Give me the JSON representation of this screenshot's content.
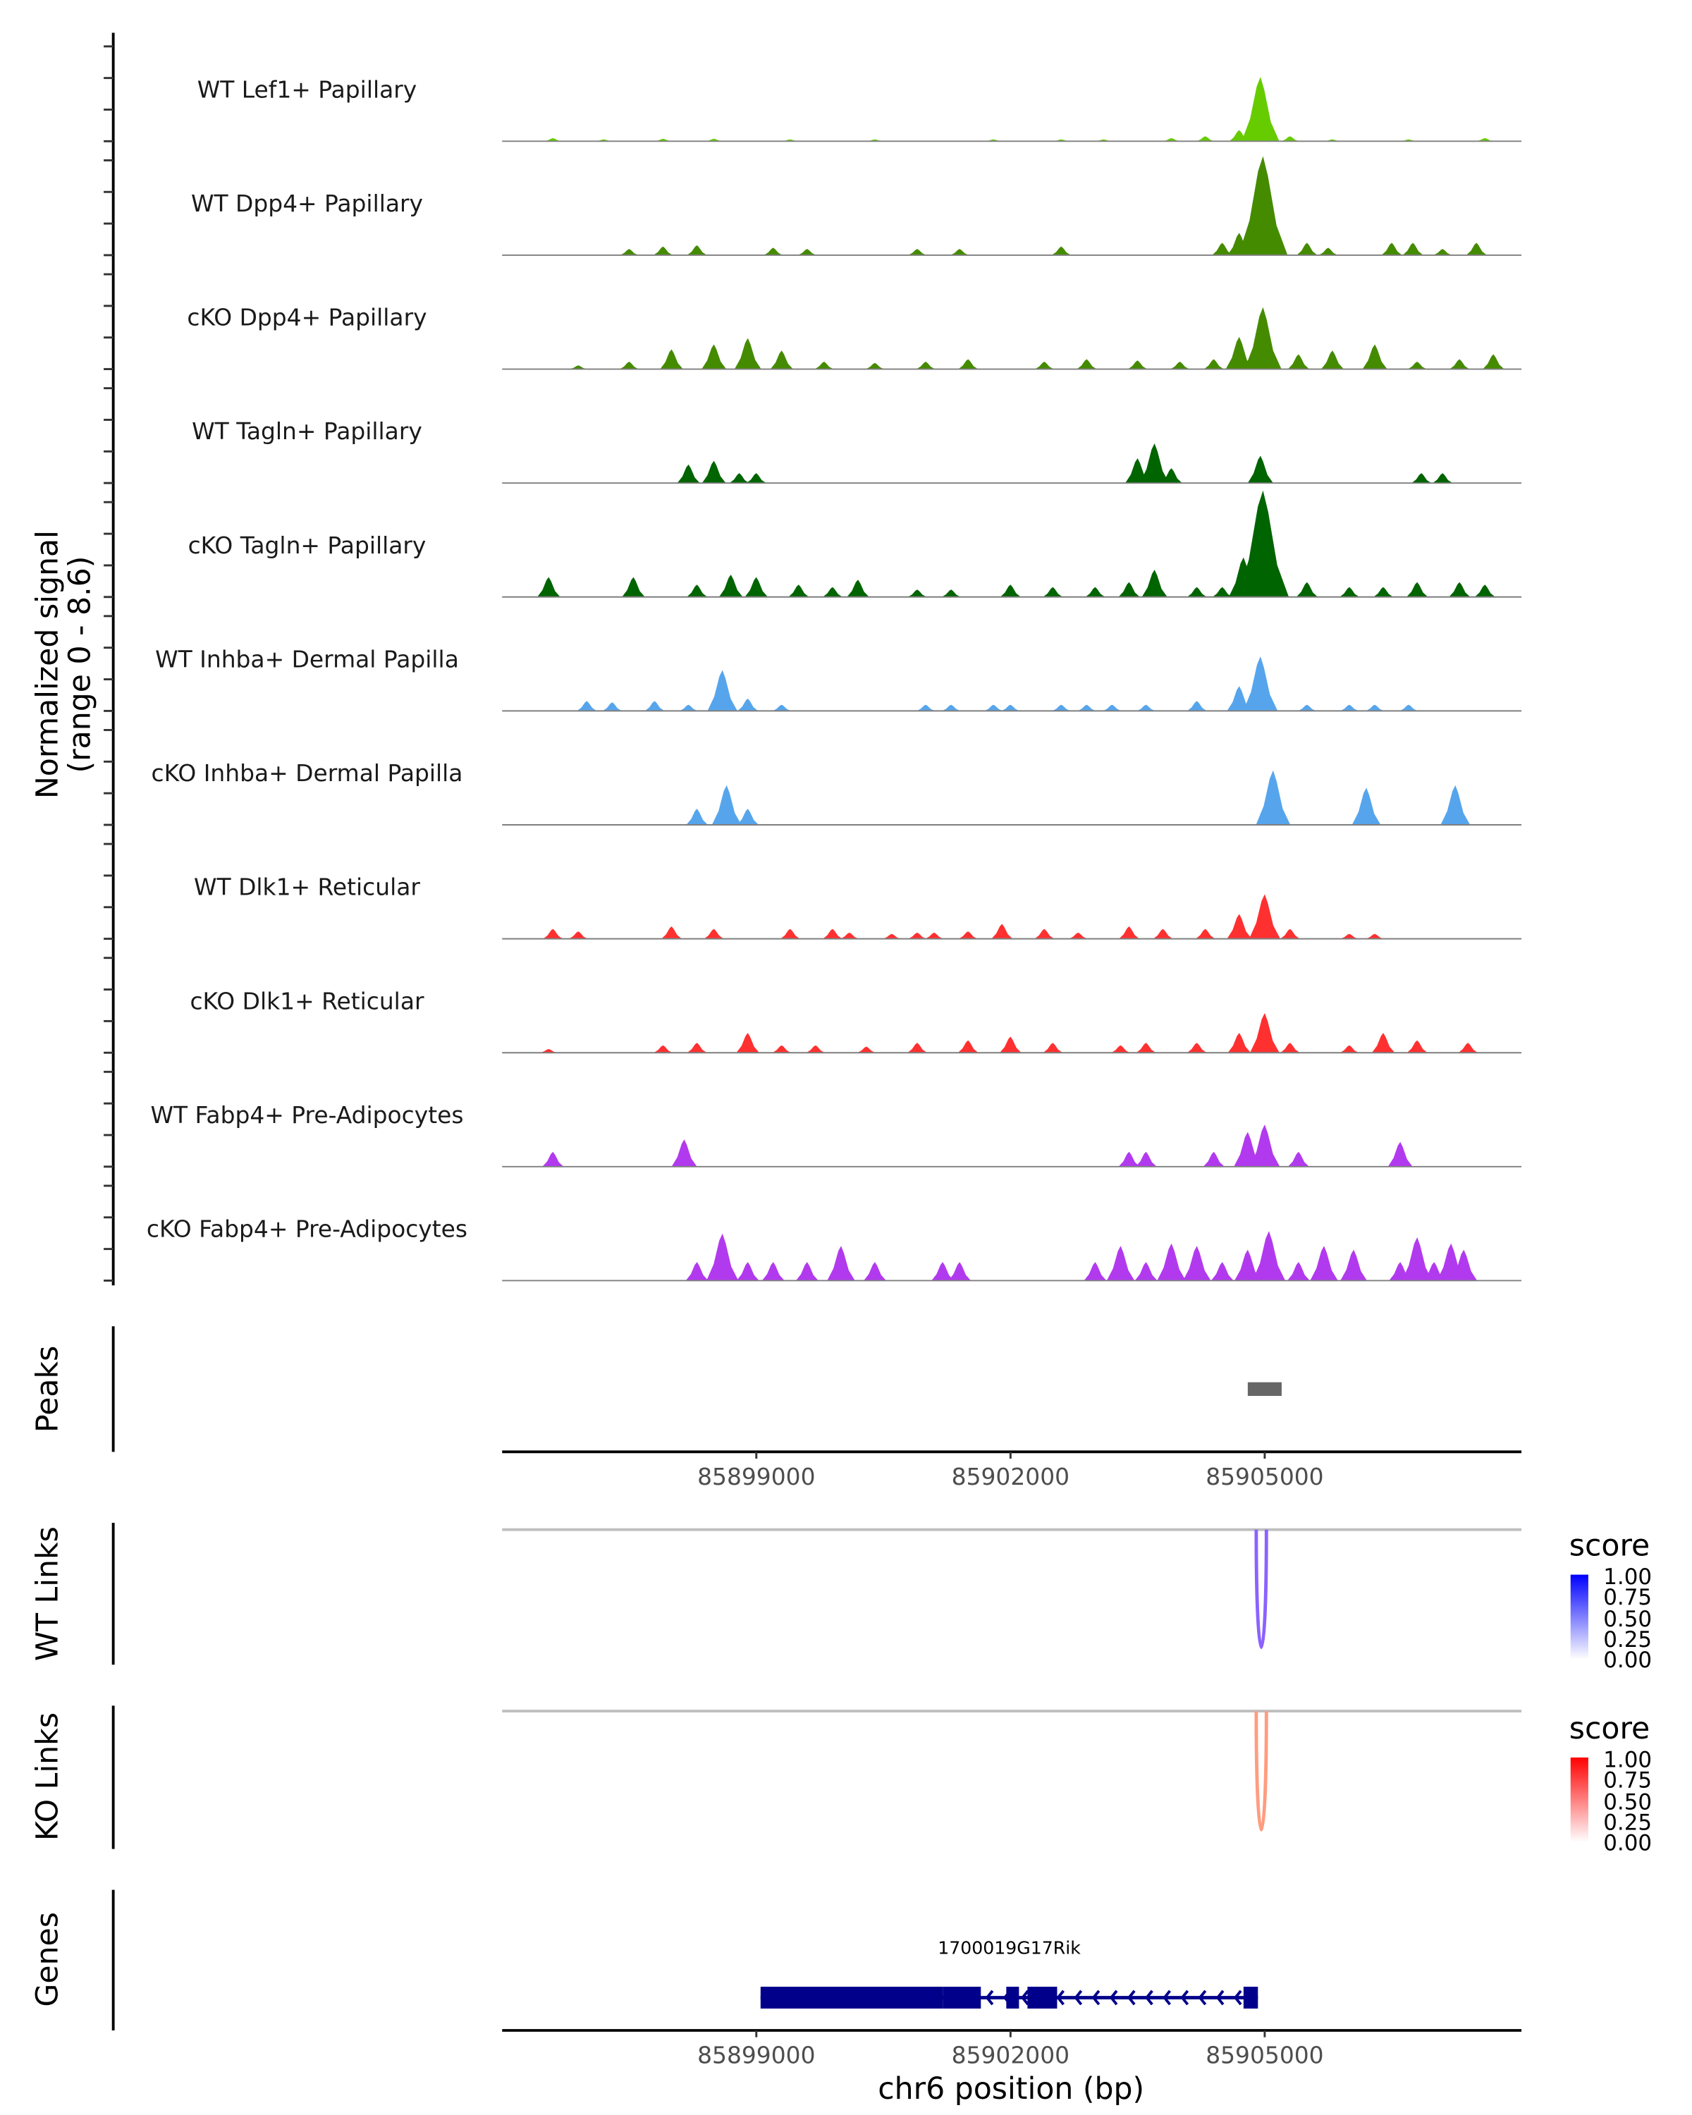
{
  "chart_data": {
    "type": "area",
    "title": "",
    "region": {
      "chrom": "chr6",
      "start": 85896000,
      "end": 85908030
    },
    "xlabel": "chr6 position (bp)",
    "x_ticks": [
      85899000,
      85902000,
      85905000
    ],
    "x_tick_labels": [
      "85899000",
      "85902000",
      "85905000"
    ],
    "coverage_ylabel": "Normalized signal\n(range 0 - 8.6)",
    "coverage_ylabel_lines": [
      "Normalized signal",
      "(range 0 - 8.6)"
    ],
    "ylim": [
      0,
      8.6
    ],
    "tracks": [
      {
        "name": "WT Lef1+ Papillary",
        "color": "#66CC00",
        "peaks": [
          [
            85896600,
            0.25
          ],
          [
            85897200,
            0.15
          ],
          [
            85897900,
            0.2
          ],
          [
            85898500,
            0.2
          ],
          [
            85899400,
            0.15
          ],
          [
            85900400,
            0.15
          ],
          [
            85901800,
            0.15
          ],
          [
            85902600,
            0.15
          ],
          [
            85903100,
            0.15
          ],
          [
            85903900,
            0.25
          ],
          [
            85904300,
            0.4
          ],
          [
            85904700,
            0.9
          ],
          [
            85904950,
            5.2
          ],
          [
            85905300,
            0.4
          ],
          [
            85905800,
            0.15
          ],
          [
            85906700,
            0.15
          ],
          [
            85907600,
            0.25
          ]
        ]
      },
      {
        "name": "WT Dpp4+ Papillary",
        "color": "#458B00",
        "peaks": [
          [
            85897500,
            0.5
          ],
          [
            85897900,
            0.7
          ],
          [
            85898300,
            0.8
          ],
          [
            85899200,
            0.6
          ],
          [
            85899600,
            0.5
          ],
          [
            85900900,
            0.5
          ],
          [
            85901400,
            0.5
          ],
          [
            85902600,
            0.7
          ],
          [
            85904500,
            1.0
          ],
          [
            85904700,
            1.8
          ],
          [
            85904980,
            8.0
          ],
          [
            85905500,
            1.0
          ],
          [
            85905750,
            0.6
          ],
          [
            85906500,
            1.0
          ],
          [
            85906750,
            1.0
          ],
          [
            85907100,
            0.5
          ],
          [
            85907500,
            1.0
          ]
        ]
      },
      {
        "name": "cKO Dpp4+ Papillary",
        "color": "#458B00",
        "peaks": [
          [
            85896900,
            0.3
          ],
          [
            85897500,
            0.6
          ],
          [
            85898000,
            1.6
          ],
          [
            85898500,
            2.0
          ],
          [
            85898900,
            2.5
          ],
          [
            85899300,
            1.5
          ],
          [
            85899800,
            0.6
          ],
          [
            85900400,
            0.5
          ],
          [
            85901000,
            0.6
          ],
          [
            85901500,
            0.8
          ],
          [
            85902400,
            0.6
          ],
          [
            85902900,
            0.8
          ],
          [
            85903500,
            0.7
          ],
          [
            85904000,
            0.6
          ],
          [
            85904400,
            0.8
          ],
          [
            85904700,
            2.6
          ],
          [
            85904980,
            5.0
          ],
          [
            85905400,
            1.2
          ],
          [
            85905800,
            1.5
          ],
          [
            85906300,
            2.0
          ],
          [
            85906800,
            0.6
          ],
          [
            85907300,
            0.8
          ],
          [
            85907700,
            1.2
          ]
        ]
      },
      {
        "name": "WT Tagln+ Papillary",
        "color": "#006400",
        "peaks": [
          [
            85898200,
            1.5
          ],
          [
            85898500,
            1.8
          ],
          [
            85898800,
            0.8
          ],
          [
            85899000,
            0.8
          ],
          [
            85903500,
            2.0
          ],
          [
            85903700,
            3.2
          ],
          [
            85903900,
            1.2
          ],
          [
            85904950,
            2.2
          ],
          [
            85906850,
            0.8
          ],
          [
            85907100,
            0.8
          ]
        ]
      },
      {
        "name": "cKO Tagln+ Papillary",
        "color": "#006400",
        "peaks": [
          [
            85896550,
            1.6
          ],
          [
            85897550,
            1.6
          ],
          [
            85898300,
            1.0
          ],
          [
            85898700,
            1.8
          ],
          [
            85899000,
            1.6
          ],
          [
            85899500,
            1.0
          ],
          [
            85899900,
            0.8
          ],
          [
            85900200,
            1.4
          ],
          [
            85900900,
            0.6
          ],
          [
            85901300,
            0.6
          ],
          [
            85902000,
            1.0
          ],
          [
            85902500,
            0.8
          ],
          [
            85903000,
            0.8
          ],
          [
            85903400,
            1.2
          ],
          [
            85903700,
            2.2
          ],
          [
            85904200,
            0.8
          ],
          [
            85904500,
            0.8
          ],
          [
            85904750,
            3.2
          ],
          [
            85904980,
            8.6
          ],
          [
            85905500,
            1.2
          ],
          [
            85906000,
            0.8
          ],
          [
            85906400,
            0.8
          ],
          [
            85906800,
            1.2
          ],
          [
            85907300,
            1.2
          ],
          [
            85907600,
            1.0
          ]
        ]
      },
      {
        "name": "WT Inhba+ Dermal Papilla",
        "color": "#56A5EC",
        "peaks": [
          [
            85897000,
            0.8
          ],
          [
            85897300,
            0.7
          ],
          [
            85897800,
            0.8
          ],
          [
            85898200,
            0.5
          ],
          [
            85898600,
            3.3
          ],
          [
            85898900,
            1.0
          ],
          [
            85899300,
            0.5
          ],
          [
            85901000,
            0.5
          ],
          [
            85901300,
            0.5
          ],
          [
            85901800,
            0.5
          ],
          [
            85902000,
            0.5
          ],
          [
            85902600,
            0.5
          ],
          [
            85902900,
            0.5
          ],
          [
            85903200,
            0.5
          ],
          [
            85903600,
            0.5
          ],
          [
            85904200,
            0.8
          ],
          [
            85904700,
            2.0
          ],
          [
            85904950,
            4.4
          ],
          [
            85905500,
            0.5
          ],
          [
            85906000,
            0.5
          ],
          [
            85906300,
            0.5
          ],
          [
            85906700,
            0.5
          ]
        ]
      },
      {
        "name": "cKO Inhba+ Dermal Papilla",
        "color": "#56A5EC",
        "peaks": [
          [
            85898300,
            1.3
          ],
          [
            85898650,
            3.2
          ],
          [
            85898900,
            1.3
          ],
          [
            85905100,
            4.4
          ],
          [
            85906200,
            3.0
          ],
          [
            85907250,
            3.2
          ]
        ]
      },
      {
        "name": "WT Dlk1+ Reticular",
        "color": "#FF3030",
        "peaks": [
          [
            85896600,
            0.8
          ],
          [
            85896900,
            0.6
          ],
          [
            85898000,
            1.0
          ],
          [
            85898500,
            0.8
          ],
          [
            85899400,
            0.8
          ],
          [
            85899900,
            0.8
          ],
          [
            85900100,
            0.5
          ],
          [
            85900600,
            0.4
          ],
          [
            85900900,
            0.5
          ],
          [
            85901100,
            0.5
          ],
          [
            85901500,
            0.6
          ],
          [
            85901900,
            1.2
          ],
          [
            85902400,
            0.8
          ],
          [
            85902800,
            0.5
          ],
          [
            85903400,
            1.0
          ],
          [
            85903800,
            0.8
          ],
          [
            85904300,
            0.8
          ],
          [
            85904700,
            2.0
          ],
          [
            85905000,
            3.6
          ],
          [
            85905300,
            0.8
          ],
          [
            85906000,
            0.4
          ],
          [
            85906300,
            0.4
          ]
        ]
      },
      {
        "name": "cKO Dlk1+ Reticular",
        "color": "#FF3030",
        "peaks": [
          [
            85896550,
            0.3
          ],
          [
            85897900,
            0.6
          ],
          [
            85898300,
            0.8
          ],
          [
            85898900,
            1.6
          ],
          [
            85899300,
            0.6
          ],
          [
            85899700,
            0.6
          ],
          [
            85900300,
            0.5
          ],
          [
            85900900,
            0.8
          ],
          [
            85901500,
            1.0
          ],
          [
            85902000,
            1.3
          ],
          [
            85902500,
            0.8
          ],
          [
            85903300,
            0.6
          ],
          [
            85903600,
            0.8
          ],
          [
            85904200,
            0.8
          ],
          [
            85904700,
            1.6
          ],
          [
            85905000,
            3.2
          ],
          [
            85905300,
            0.8
          ],
          [
            85906000,
            0.6
          ],
          [
            85906400,
            1.6
          ],
          [
            85906800,
            1.0
          ],
          [
            85907400,
            0.8
          ]
        ]
      },
      {
        "name": "WT Fabp4+ Pre-Adipocytes",
        "color": "#B23AEE",
        "peaks": [
          [
            85896600,
            1.2
          ],
          [
            85898150,
            2.2
          ],
          [
            85903400,
            1.2
          ],
          [
            85903600,
            1.2
          ],
          [
            85904400,
            1.2
          ],
          [
            85904800,
            2.8
          ],
          [
            85905000,
            3.4
          ],
          [
            85905400,
            1.2
          ],
          [
            85906600,
            2.0
          ]
        ]
      },
      {
        "name": "cKO Fabp4+ Pre-Adipocytes",
        "color": "#B23AEE",
        "peaks": [
          [
            85898300,
            1.5
          ],
          [
            85898600,
            3.8
          ],
          [
            85898900,
            1.5
          ],
          [
            85899200,
            1.5
          ],
          [
            85899600,
            1.5
          ],
          [
            85900000,
            2.8
          ],
          [
            85900400,
            1.5
          ],
          [
            85901200,
            1.5
          ],
          [
            85901400,
            1.5
          ],
          [
            85903000,
            1.5
          ],
          [
            85903300,
            2.8
          ],
          [
            85903600,
            1.5
          ],
          [
            85903900,
            3.0
          ],
          [
            85904200,
            2.8
          ],
          [
            85904500,
            1.5
          ],
          [
            85904800,
            2.5
          ],
          [
            85905050,
            4.0
          ],
          [
            85905400,
            1.5
          ],
          [
            85905700,
            2.8
          ],
          [
            85906050,
            2.5
          ],
          [
            85906600,
            1.5
          ],
          [
            85906800,
            3.5
          ],
          [
            85907000,
            1.5
          ],
          [
            85907200,
            3.0
          ],
          [
            85907350,
            2.5
          ]
        ]
      }
    ],
    "peaks_track": {
      "label": "Peaks",
      "color": "#666666",
      "intervals": [
        [
          85904800,
          85905200
        ]
      ]
    },
    "links": [
      {
        "label": "WT Links",
        "start": 85904900,
        "end": 85905020,
        "score": 0.6,
        "legend_title": "score",
        "low_color": "#FFFFFF",
        "high_color": "#0000FF",
        "line_color": "#8C62FF",
        "legend_ticks": [
          "1.00",
          "0.75",
          "0.50",
          "0.25",
          "0.00"
        ]
      },
      {
        "label": "KO Links",
        "start": 85904900,
        "end": 85905020,
        "score": 0.45,
        "legend_title": "score",
        "low_color": "#FFFFFF",
        "high_color": "#FF0000",
        "line_color": "#FF9C80",
        "legend_ticks": [
          "1.00",
          "0.75",
          "0.50",
          "0.25",
          "0.00"
        ]
      }
    ],
    "genes": {
      "label": "Genes",
      "color": "#00008B",
      "items": [
        {
          "name": "1700019G17Rik",
          "strand": "-",
          "start": 85899050,
          "end": 85904920,
          "exons": [
            [
              85899050,
              85901200
            ],
            [
              85901200,
              85901650
            ],
            [
              85901950,
              85902100
            ],
            [
              85902200,
              85902550
            ],
            [
              85904750,
              85904920
            ]
          ]
        }
      ]
    }
  }
}
